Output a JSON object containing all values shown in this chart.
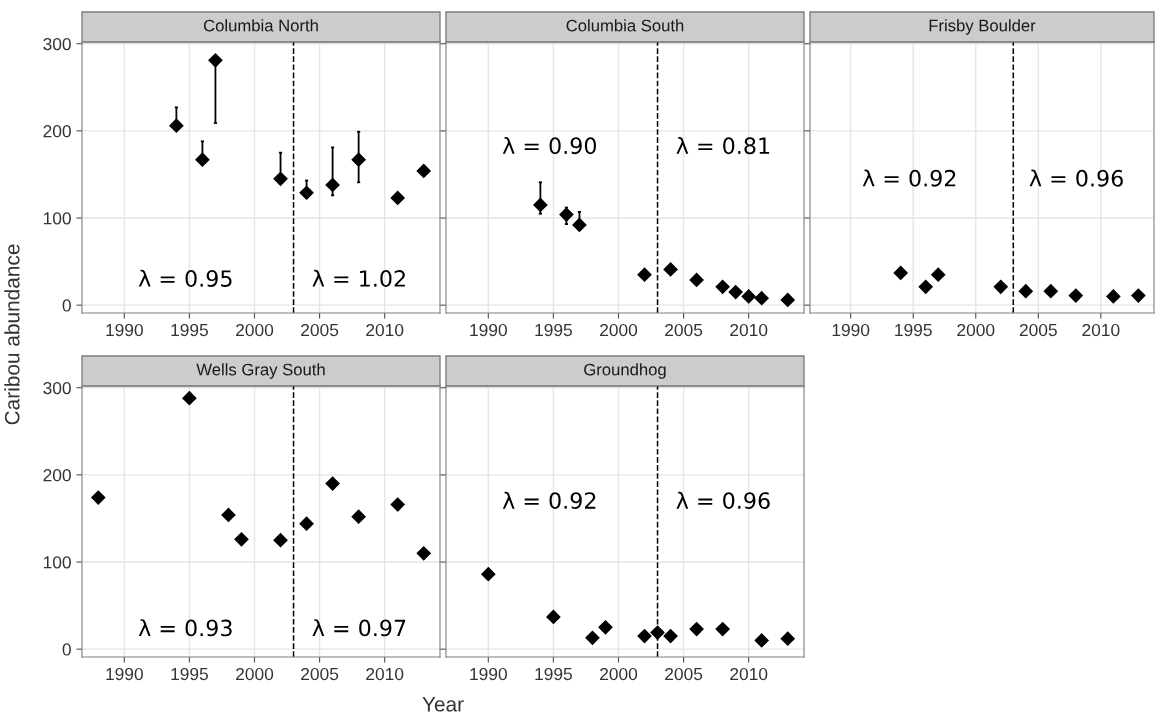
{
  "chart_data": [
    {
      "type": "scatter",
      "title": "Columbia North",
      "ylabel": "Caribou abundance",
      "xlim": [
        1986.75,
        2014.25
      ],
      "xticks": [
        1990,
        1995,
        2000,
        2005,
        2010
      ],
      "ylim": [
        -9,
        302
      ],
      "yticks": [
        0,
        100,
        200,
        300
      ],
      "grid": true,
      "marker": "diamond",
      "series": [
        {
          "color": "#000000",
          "x": [
            1994,
            1996,
            1997,
            2002,
            2004,
            2006,
            2008,
            2011,
            2013
          ],
          "values": [
            206,
            167,
            281,
            145,
            129,
            138,
            167,
            123,
            154
          ],
          "errors": [
            [
              206,
              227
            ],
            [
              167,
              188
            ],
            [
              209,
              281
            ],
            [
              145,
              175
            ],
            [
              129,
              143
            ],
            [
              126,
              181
            ],
            [
              141,
              199
            ],
            null,
            null
          ]
        }
      ],
      "ref_lines": [
        {
          "axis": "x",
          "value": 2003,
          "color": "#000000",
          "line_style": "dashed"
        }
      ],
      "annotations": [
        "λ = 0.95",
        "λ = 1.02"
      ]
    },
    {
      "type": "scatter",
      "title": "Columbia South",
      "xlim": [
        1986.75,
        2014.25
      ],
      "xticks": [
        1990,
        1995,
        2000,
        2005,
        2010
      ],
      "ylim": [
        -9,
        302
      ],
      "yticks": [
        0,
        100,
        200,
        300
      ],
      "grid": true,
      "marker": "diamond",
      "tick_labels": "x",
      "series": [
        {
          "color": "#000000",
          "x": [
            1994,
            1996,
            1997,
            2002,
            2004,
            2006,
            2008,
            2009,
            2010,
            2011,
            2013
          ],
          "values": [
            115,
            104,
            92,
            35,
            41,
            29,
            21,
            15,
            10,
            8,
            6
          ],
          "errors": [
            [
              105,
              141
            ],
            [
              93,
              112
            ],
            [
              92,
              107
            ],
            null,
            null,
            null,
            null,
            null,
            null,
            null,
            null
          ]
        }
      ],
      "ref_lines": [
        {
          "axis": "x",
          "value": 2003,
          "color": "#000000",
          "line_style": "dashed"
        }
      ],
      "annotations": [
        "λ = 0.90",
        "λ = 0.81"
      ]
    },
    {
      "type": "scatter",
      "title": "Frisby Boulder",
      "xlim": [
        1986.75,
        2014.25
      ],
      "xticks": [
        1990,
        1995,
        2000,
        2005,
        2010
      ],
      "ylim": [
        -9,
        302
      ],
      "yticks": [
        0,
        100,
        200,
        300
      ],
      "grid": true,
      "marker": "diamond",
      "tick_labels": "x",
      "series": [
        {
          "color": "#000000",
          "x": [
            1994,
            1996,
            1997,
            2002,
            2004,
            2006,
            2008,
            2011,
            2013
          ],
          "values": [
            37,
            21,
            35,
            21,
            16,
            16,
            11,
            10,
            11
          ]
        }
      ],
      "ref_lines": [
        {
          "axis": "x",
          "value": 2003,
          "color": "#000000",
          "line_style": "dashed"
        }
      ],
      "annotations": [
        "λ = 0.92",
        "λ = 0.96"
      ]
    },
    {
      "type": "scatter",
      "title": "Wells Gray South",
      "xlim": [
        1986.75,
        2014.25
      ],
      "xticks": [
        1990,
        1995,
        2000,
        2005,
        2010
      ],
      "ylim": [
        -9,
        302
      ],
      "yticks": [
        0,
        100,
        200,
        300
      ],
      "grid": true,
      "marker": "diamond",
      "series": [
        {
          "color": "#000000",
          "x": [
            1988,
            1995,
            1998,
            1999,
            2002,
            2004,
            2006,
            2008,
            2011,
            2013
          ],
          "values": [
            174,
            288,
            154,
            126,
            125,
            144,
            190,
            152,
            166,
            110
          ]
        }
      ],
      "ref_lines": [
        {
          "axis": "x",
          "value": 2003,
          "color": "#000000",
          "line_style": "dashed"
        }
      ],
      "annotations": [
        "λ = 0.93",
        "λ = 0.97"
      ]
    },
    {
      "type": "scatter",
      "title": "Groundhog",
      "xlabel": "Year",
      "xlim": [
        1986.75,
        2014.25
      ],
      "xticks": [
        1990,
        1995,
        2000,
        2005,
        2010
      ],
      "ylim": [
        -9,
        302
      ],
      "yticks": [
        0,
        100,
        200,
        300
      ],
      "grid": true,
      "marker": "diamond",
      "tick_labels": "x",
      "series": [
        {
          "color": "#000000",
          "x": [
            1990,
            1995,
            1998,
            1999,
            2002,
            2003,
            2004,
            2006,
            2008,
            2011,
            2013
          ],
          "values": [
            86,
            37,
            13,
            25,
            15,
            19,
            15,
            23,
            23,
            10,
            12
          ]
        }
      ],
      "ref_lines": [
        {
          "axis": "x",
          "value": 2003,
          "color": "#000000",
          "line_style": "dashed"
        }
      ],
      "annotations": [
        "λ = 0.92",
        "λ = 0.96"
      ]
    }
  ]
}
